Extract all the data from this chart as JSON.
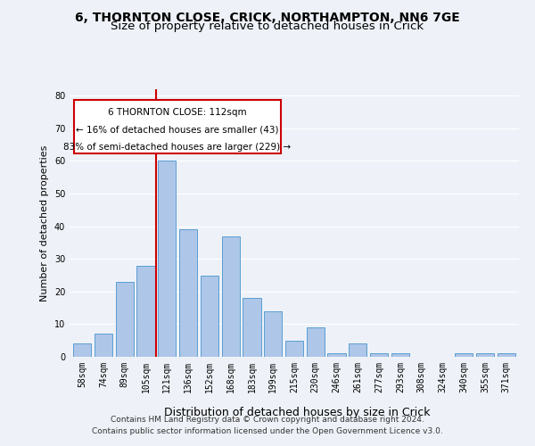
{
  "title1": "6, THORNTON CLOSE, CRICK, NORTHAMPTON, NN6 7GE",
  "title2": "Size of property relative to detached houses in Crick",
  "xlabel": "Distribution of detached houses by size in Crick",
  "ylabel": "Number of detached properties",
  "categories": [
    "58sqm",
    "74sqm",
    "89sqm",
    "105sqm",
    "121sqm",
    "136sqm",
    "152sqm",
    "168sqm",
    "183sqm",
    "199sqm",
    "215sqm",
    "230sqm",
    "246sqm",
    "261sqm",
    "277sqm",
    "293sqm",
    "308sqm",
    "324sqm",
    "340sqm",
    "355sqm",
    "371sqm"
  ],
  "values": [
    4,
    7,
    23,
    28,
    60,
    39,
    25,
    37,
    18,
    14,
    5,
    9,
    1,
    4,
    1,
    1,
    0,
    0,
    1,
    1,
    1
  ],
  "bar_color": "#aec6e8",
  "bar_edge_color": "#5a9fd4",
  "vline_x": 3.5,
  "vline_color": "#cc0000",
  "annotation_line1": "6 THORNTON CLOSE: 112sqm",
  "annotation_line2": "← 16% of detached houses are smaller (43)",
  "annotation_line3": "83% of semi-detached houses are larger (229) →",
  "ylim": [
    0,
    82
  ],
  "yticks": [
    0,
    10,
    20,
    30,
    40,
    50,
    60,
    70,
    80
  ],
  "footer_text": "Contains HM Land Registry data © Crown copyright and database right 2024.\nContains public sector information licensed under the Open Government Licence v3.0.",
  "bg_color": "#eef2f8",
  "plot_bg_color": "#eef2f8",
  "grid_color": "#ffffff",
  "title1_fontsize": 10,
  "title2_fontsize": 9.5,
  "xlabel_fontsize": 9,
  "ylabel_fontsize": 8,
  "tick_fontsize": 7,
  "annotation_fontsize": 7.5,
  "footer_fontsize": 6.5
}
